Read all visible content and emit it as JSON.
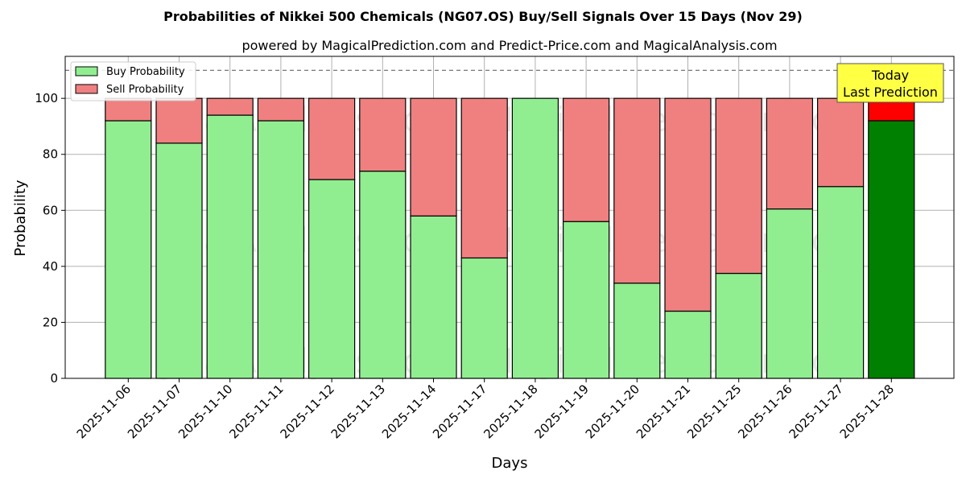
{
  "chart_data": {
    "type": "bar",
    "stacked": true,
    "title": "Probabilities of Nikkei 500 Chemicals (NG07.OS) Buy/Sell Signals Over 15 Days (Nov 29)",
    "subtitle": "powered by MagicalPrediction.com and Predict-Price.com and MagicalAnalysis.com",
    "xlabel": "Days",
    "ylabel": "Probability",
    "ylim": [
      0,
      115
    ],
    "yticks": [
      0,
      20,
      40,
      60,
      80,
      100
    ],
    "grid": true,
    "legend_position": "top-left",
    "reference_line": 110,
    "categories": [
      "2025-11-06",
      "2025-11-07",
      "2025-11-10",
      "2025-11-11",
      "2025-11-12",
      "2025-11-13",
      "2025-11-14",
      "2025-11-17",
      "2025-11-18",
      "2025-11-19",
      "2025-11-20",
      "2025-11-21",
      "2025-11-25",
      "2025-11-26",
      "2025-11-27",
      "2025-11-28"
    ],
    "series": [
      {
        "name": "Buy Probability",
        "color": "#90ee90",
        "highlight_color": "#008000",
        "values": [
          92,
          84,
          94,
          92,
          71,
          74,
          58,
          43,
          100,
          56,
          34,
          24,
          37.5,
          60.5,
          68.5,
          92
        ]
      },
      {
        "name": "Sell Probability",
        "color": "#f08080",
        "highlight_color": "#ff0000",
        "values": [
          8,
          16,
          6,
          8,
          29,
          26,
          42,
          57,
          0,
          44,
          66,
          76,
          62.5,
          39.5,
          31.5,
          8
        ]
      }
    ],
    "annotation": {
      "line1": "Today",
      "line2": "Last Prediction",
      "color": "#ffff44"
    },
    "watermarks": [
      "MagicalAnalysis.com",
      "MagicalPrediction.com"
    ]
  }
}
